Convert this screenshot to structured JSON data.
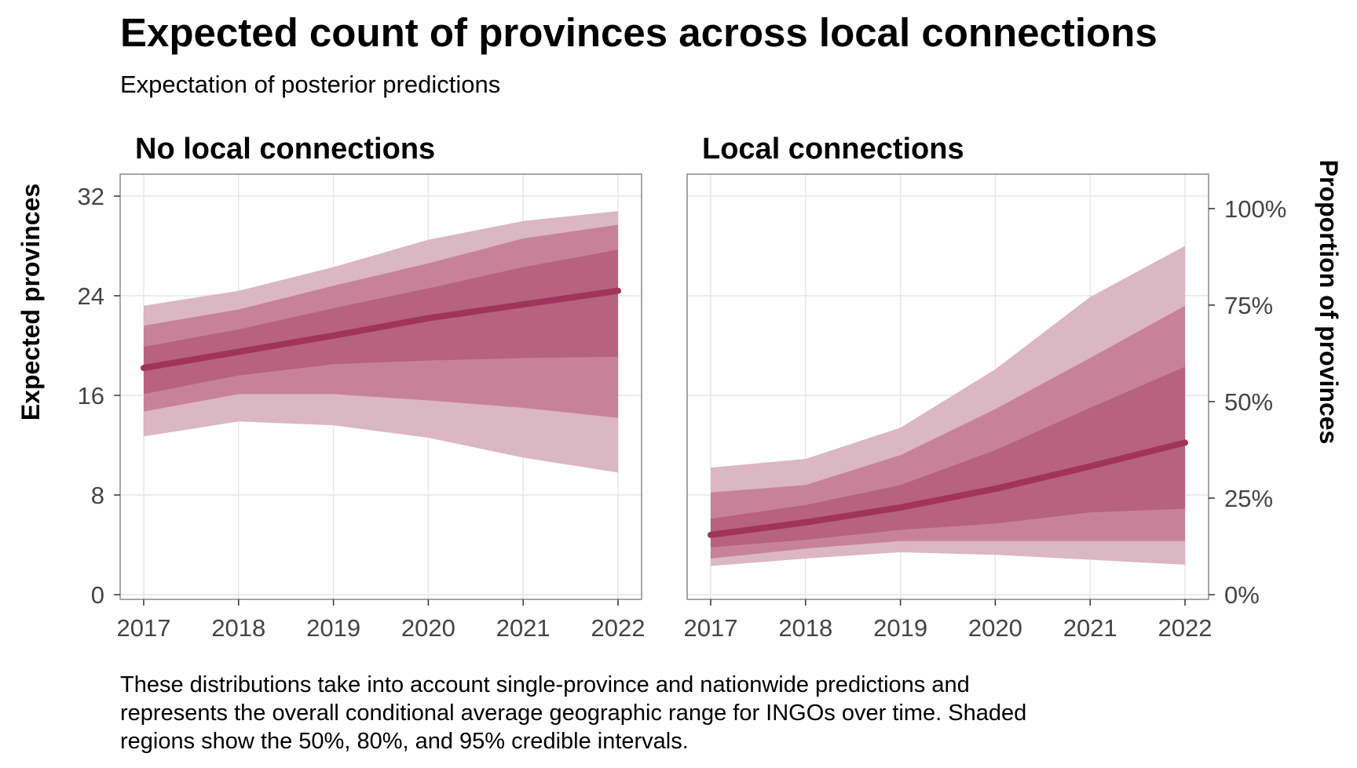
{
  "title": "Expected count of provinces across local connections",
  "subtitle": "Expectation of posterior predictions",
  "caption_lines": [
    "These distributions take into account single-province and nationwide predictions and",
    "represents the overall conditional average geographic range for INGOs over time. Shaded",
    "regions show the 50%, 80%, and 95% credible intervals."
  ],
  "colors": {
    "band95": "#dbb6c3",
    "band80": "#c78299",
    "band50": "#b7627f",
    "median": "#a0345a",
    "grid": "#e6e6e6",
    "panel_border": "#888888"
  },
  "chart_data": {
    "type": "area",
    "x": [
      2017,
      2018,
      2019,
      2020,
      2021,
      2022
    ],
    "xtick_labels": [
      "2017",
      "2018",
      "2019",
      "2020",
      "2021",
      "2022"
    ],
    "ylabel": "Expected provinces",
    "ylim": [
      0,
      33
    ],
    "y_ticks": [
      0,
      8,
      16,
      24,
      32
    ],
    "y_tick_labels": [
      "0",
      "8",
      "16",
      "24",
      "32"
    ],
    "secondary_ylabel": "Proportion of provinces",
    "secondary_ticks": [
      0,
      0.25,
      0.5,
      0.75,
      1.0
    ],
    "secondary_tick_labels": [
      "0%",
      "25%",
      "50%",
      "75%",
      "100%"
    ],
    "secondary_max_count": 31,
    "grid": true,
    "panels": [
      {
        "name": "No local connections",
        "median": [
          18.2,
          19.5,
          20.8,
          22.2,
          23.3,
          24.4
        ],
        "ci50_low": [
          16.1,
          17.6,
          18.5,
          18.8,
          19.0,
          19.1
        ],
        "ci50_high": [
          19.9,
          21.3,
          23.0,
          24.6,
          26.3,
          27.7
        ],
        "ci80_low": [
          14.7,
          16.1,
          16.1,
          15.6,
          15.0,
          14.2
        ],
        "ci80_high": [
          21.6,
          22.9,
          24.8,
          26.6,
          28.6,
          29.7
        ],
        "ci95_low": [
          12.7,
          13.9,
          13.6,
          12.6,
          11.0,
          9.8
        ],
        "ci95_high": [
          23.2,
          24.4,
          26.3,
          28.5,
          30.0,
          30.8
        ]
      },
      {
        "name": "Local connections",
        "median": [
          4.8,
          5.8,
          7.0,
          8.5,
          10.3,
          12.2
        ],
        "ci50_low": [
          3.8,
          4.4,
          5.2,
          5.7,
          6.6,
          6.9
        ],
        "ci50_high": [
          6.1,
          7.2,
          8.8,
          11.6,
          15.0,
          18.3
        ],
        "ci80_low": [
          2.9,
          3.7,
          4.3,
          4.3,
          4.3,
          4.3
        ],
        "ci80_high": [
          8.2,
          8.8,
          11.2,
          14.9,
          19.0,
          23.2
        ],
        "ci95_low": [
          2.3,
          2.9,
          3.4,
          3.2,
          2.8,
          2.4
        ],
        "ci95_high": [
          10.2,
          10.9,
          13.4,
          18.1,
          23.9,
          28.0
        ]
      }
    ]
  }
}
